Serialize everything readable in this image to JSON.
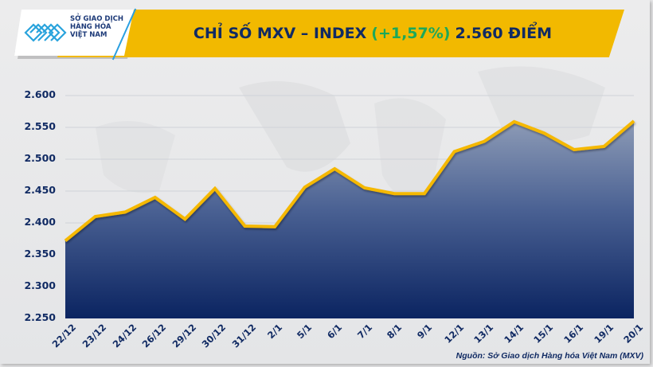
{
  "header": {
    "logo_lines": [
      "SỞ GIAO DỊCH",
      "HÀNG HÓA",
      "VIỆT NAM"
    ],
    "title_prefix": "CHỈ SỐ MXV – INDEX",
    "title_change": "(+1,57%)",
    "title_value": "2.560 ĐIỂM"
  },
  "colors": {
    "banner": "#f2b900",
    "title_text": "#102a63",
    "change_green": "#1ca85a",
    "line": "#f5b800",
    "fill_top": "#8d9bb6",
    "fill_bottom": "#0b2461",
    "background": "#e9e9ea"
  },
  "footer": {
    "source": "Nguồn: Sở Giao dịch Hàng hóa Việt Nam (MXV)"
  },
  "chart_data": {
    "type": "area",
    "title": "CHỈ SỐ MXV – INDEX (+1,57%) 2.560 ĐIỂM",
    "xlabel": "",
    "ylabel": "",
    "ylim": [
      2250,
      2600
    ],
    "yticks": [
      "2.250",
      "2.300",
      "2.350",
      "2.400",
      "2.450",
      "2.500",
      "2.550",
      "2.600"
    ],
    "grid": true,
    "legend": "none",
    "categories": [
      "22/12",
      "23/12",
      "24/12",
      "26/12",
      "29/12",
      "30/12",
      "31/12",
      "2/1",
      "5/1",
      "6/1",
      "7/1",
      "8/1",
      "9/1",
      "12/1",
      "13/1",
      "14/1",
      "15/1",
      "16/1",
      "19/1",
      "20/1"
    ],
    "series": [
      {
        "name": "MXV-Index",
        "values": [
          2372,
          2410,
          2417,
          2440,
          2406,
          2454,
          2395,
          2394,
          2456,
          2485,
          2455,
          2446,
          2446,
          2512,
          2528,
          2559,
          2541,
          2515,
          2520,
          2560
        ]
      }
    ]
  }
}
